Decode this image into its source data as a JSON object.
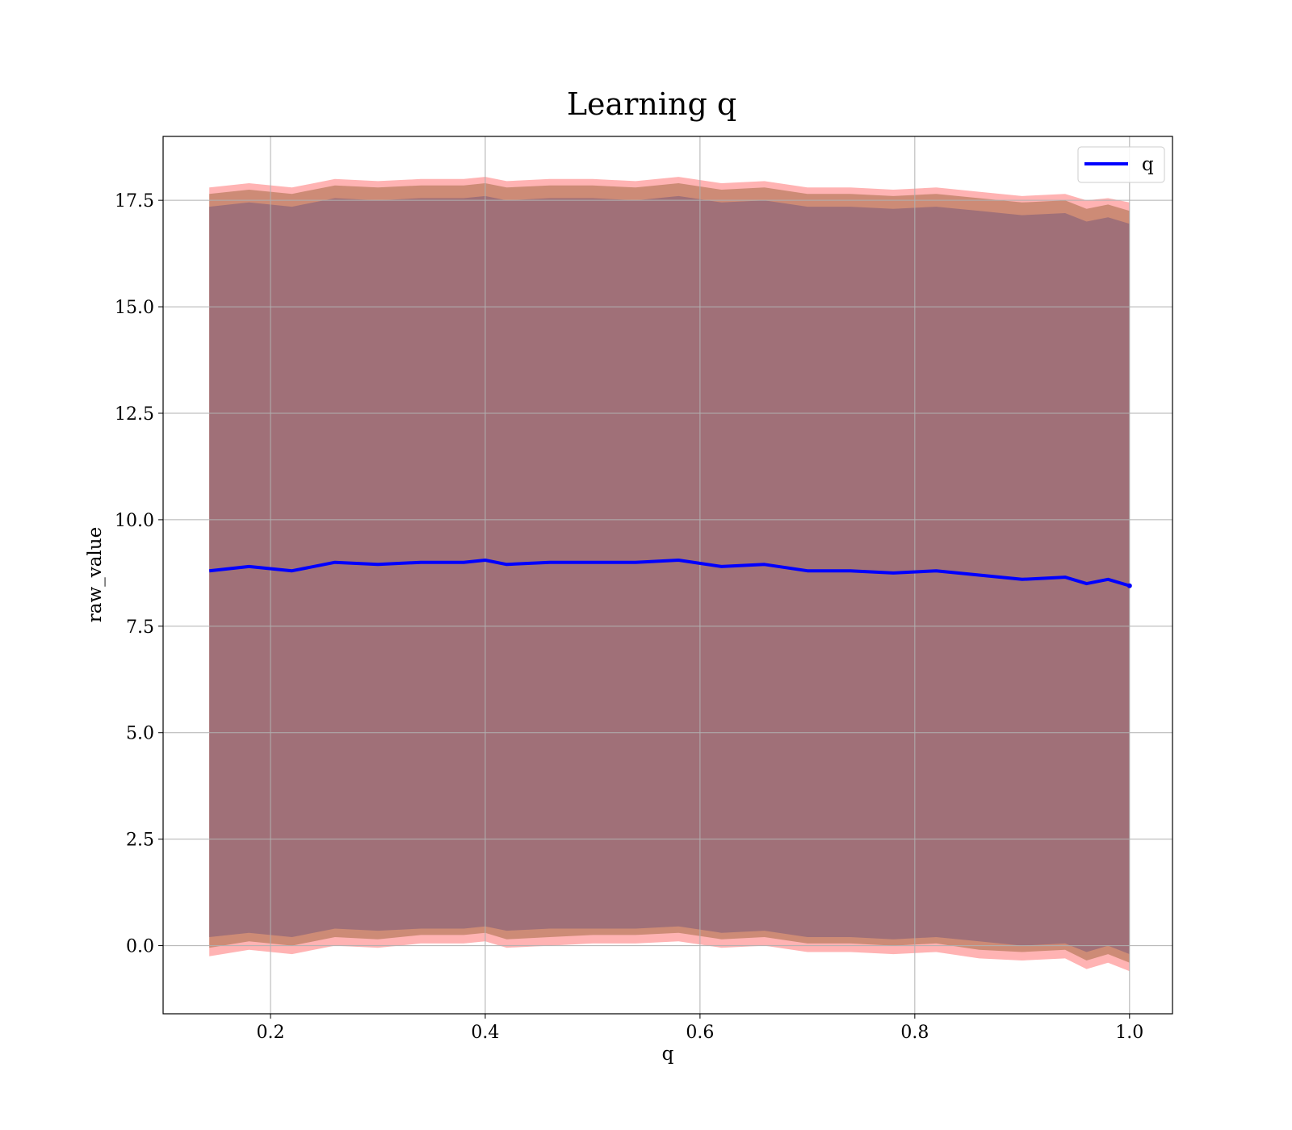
{
  "chart_data": {
    "type": "line",
    "title": "Learning q",
    "xlabel": "q",
    "ylabel": "raw_value",
    "xlim": [
      0.1,
      1.04
    ],
    "ylim": [
      -1.6,
      19.0
    ],
    "xticks": [
      0.2,
      0.4,
      0.6,
      0.8,
      1.0
    ],
    "xtick_labels": [
      "0.2",
      "0.4",
      "0.6",
      "0.8",
      "1.0"
    ],
    "yticks": [
      0.0,
      2.5,
      5.0,
      7.5,
      10.0,
      12.5,
      15.0,
      17.5
    ],
    "ytick_labels": [
      "0.0",
      "2.5",
      "5.0",
      "7.5",
      "10.0",
      "12.5",
      "15.0",
      "17.5"
    ],
    "grid": true,
    "legend_position": "top-right",
    "colors": {
      "line": "#0000ff",
      "outer_band": "#ff9999",
      "middle_band": "#c4846b",
      "inner_band": "#a07078",
      "grid": "#b0b0b0"
    },
    "series": [
      {
        "name": "q",
        "x": [
          0.143,
          0.18,
          0.22,
          0.26,
          0.3,
          0.34,
          0.38,
          0.4,
          0.42,
          0.46,
          0.5,
          0.54,
          0.58,
          0.62,
          0.66,
          0.7,
          0.74,
          0.78,
          0.82,
          0.86,
          0.9,
          0.94,
          0.96,
          0.98,
          1.0
        ],
        "y": [
          8.8,
          8.9,
          8.8,
          9.0,
          8.95,
          9.0,
          9.0,
          9.05,
          8.95,
          9.0,
          9.0,
          9.0,
          9.05,
          8.9,
          8.95,
          8.8,
          8.8,
          8.75,
          8.8,
          8.7,
          8.6,
          8.65,
          8.5,
          8.6,
          8.45
        ]
      }
    ],
    "bands": [
      {
        "role": "outer",
        "x": [
          0.143,
          0.18,
          0.22,
          0.26,
          0.3,
          0.34,
          0.38,
          0.4,
          0.42,
          0.46,
          0.5,
          0.54,
          0.58,
          0.62,
          0.66,
          0.7,
          0.74,
          0.78,
          0.82,
          0.86,
          0.9,
          0.94,
          0.96,
          0.98,
          1.0
        ],
        "lower": [
          -0.25,
          -0.1,
          -0.2,
          0.0,
          -0.05,
          0.05,
          0.05,
          0.1,
          -0.05,
          0.0,
          0.05,
          0.05,
          0.1,
          -0.05,
          0.0,
          -0.15,
          -0.15,
          -0.2,
          -0.15,
          -0.3,
          -0.35,
          -0.3,
          -0.55,
          -0.4,
          -0.6
        ],
        "upper": [
          17.8,
          17.9,
          17.8,
          18.0,
          17.95,
          18.0,
          18.0,
          18.05,
          17.95,
          18.0,
          18.0,
          17.95,
          18.05,
          17.9,
          17.95,
          17.8,
          17.8,
          17.75,
          17.8,
          17.7,
          17.6,
          17.65,
          17.5,
          17.55,
          17.45
        ]
      },
      {
        "role": "middle",
        "x": [
          0.143,
          0.18,
          0.22,
          0.26,
          0.3,
          0.34,
          0.38,
          0.4,
          0.42,
          0.46,
          0.5,
          0.54,
          0.58,
          0.62,
          0.66,
          0.7,
          0.74,
          0.78,
          0.82,
          0.86,
          0.9,
          0.94,
          0.96,
          0.98,
          1.0
        ],
        "lower": [
          -0.05,
          0.1,
          0.0,
          0.2,
          0.15,
          0.25,
          0.25,
          0.3,
          0.15,
          0.2,
          0.25,
          0.25,
          0.3,
          0.15,
          0.2,
          0.05,
          0.05,
          0.0,
          0.05,
          -0.1,
          -0.15,
          -0.1,
          -0.35,
          -0.2,
          -0.4
        ],
        "upper": [
          17.65,
          17.75,
          17.65,
          17.85,
          17.8,
          17.85,
          17.85,
          17.9,
          17.8,
          17.85,
          17.85,
          17.8,
          17.9,
          17.75,
          17.8,
          17.65,
          17.65,
          17.6,
          17.65,
          17.55,
          17.45,
          17.5,
          17.3,
          17.4,
          17.25
        ]
      },
      {
        "role": "inner",
        "x": [
          0.143,
          0.18,
          0.22,
          0.26,
          0.3,
          0.34,
          0.38,
          0.4,
          0.42,
          0.46,
          0.5,
          0.54,
          0.58,
          0.62,
          0.66,
          0.7,
          0.74,
          0.78,
          0.82,
          0.86,
          0.9,
          0.94,
          0.96,
          0.98,
          1.0
        ],
        "lower": [
          0.2,
          0.3,
          0.2,
          0.4,
          0.35,
          0.4,
          0.4,
          0.45,
          0.35,
          0.4,
          0.4,
          0.4,
          0.45,
          0.3,
          0.35,
          0.2,
          0.2,
          0.15,
          0.2,
          0.1,
          0.0,
          0.05,
          -0.15,
          0.0,
          -0.2
        ],
        "upper": [
          17.35,
          17.45,
          17.35,
          17.55,
          17.5,
          17.55,
          17.55,
          17.6,
          17.5,
          17.55,
          17.55,
          17.5,
          17.6,
          17.45,
          17.5,
          17.35,
          17.35,
          17.3,
          17.35,
          17.25,
          17.15,
          17.2,
          17.0,
          17.1,
          16.95
        ]
      }
    ]
  }
}
